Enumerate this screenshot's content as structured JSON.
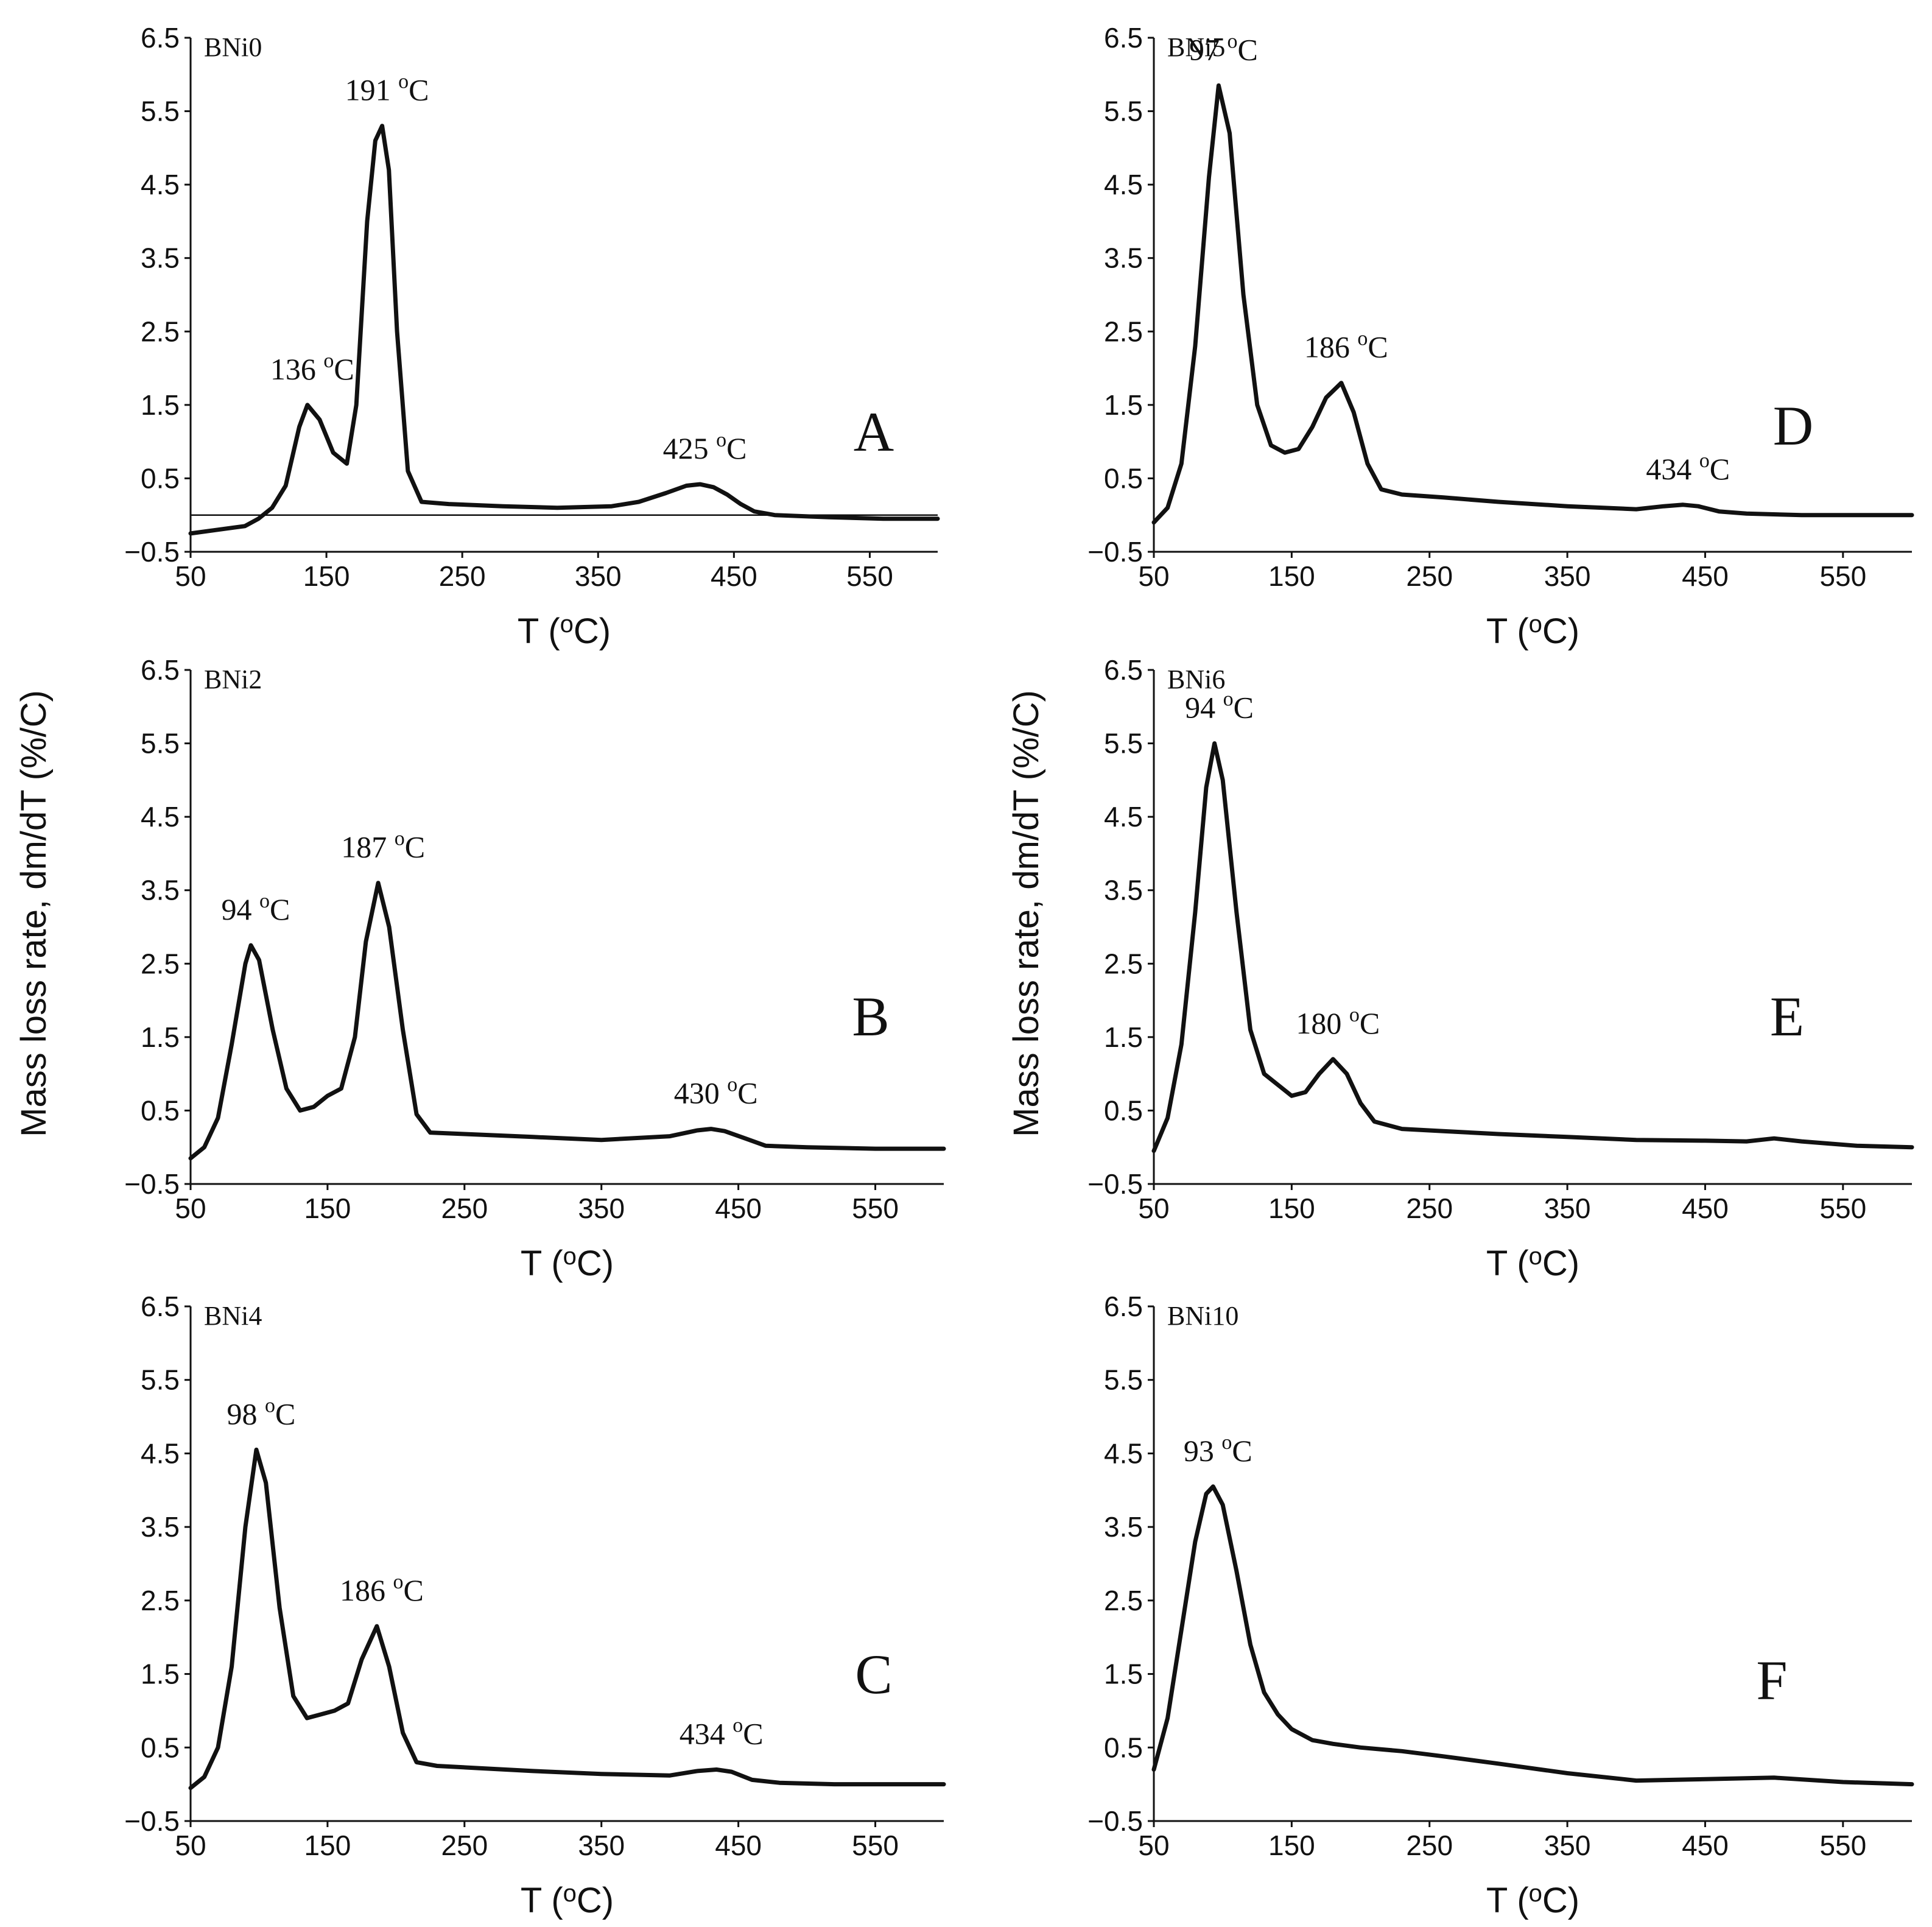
{
  "y_axis_label": "Mass loss rate, dm/dT (%/C)",
  "chart_data": [
    {
      "panel": "A",
      "type": "line",
      "sample": "BNi0",
      "xlabel": "T (oC)",
      "ylabel": "Mass loss rate, dm/dT (%/C)",
      "xlim": [
        50,
        600
      ],
      "ylim": [
        -0.5,
        6.5
      ],
      "xticks": [
        "50",
        "150",
        "250",
        "350",
        "450",
        "550"
      ],
      "yticks": [
        "6.5",
        "5.5",
        "4.5",
        "3.5",
        "2.5",
        "1.5",
        "0.5",
        "−0.5"
      ],
      "zero_line": true,
      "annotations": [
        {
          "label": "136",
          "unit": "C",
          "x": 136,
          "y": 1.5
        },
        {
          "label": "191",
          "unit": "C",
          "x": 191,
          "y": 5.3
        },
        {
          "label": "425",
          "unit": "C",
          "x": 425,
          "y": 0.42
        }
      ],
      "x": [
        50,
        70,
        90,
        100,
        110,
        120,
        130,
        136,
        145,
        155,
        165,
        172,
        180,
        186,
        191,
        196,
        202,
        210,
        220,
        240,
        280,
        320,
        360,
        380,
        400,
        415,
        425,
        435,
        445,
        455,
        465,
        480,
        520,
        560,
        600
      ],
      "y": [
        -0.25,
        -0.2,
        -0.15,
        -0.05,
        0.1,
        0.4,
        1.2,
        1.5,
        1.3,
        0.85,
        0.7,
        1.5,
        4.0,
        5.1,
        5.3,
        4.7,
        2.5,
        0.6,
        0.18,
        0.15,
        0.12,
        0.1,
        0.12,
        0.18,
        0.3,
        0.4,
        0.42,
        0.38,
        0.28,
        0.15,
        0.05,
        0.0,
        -0.03,
        -0.05,
        -0.05
      ]
    },
    {
      "panel": "B",
      "type": "line",
      "sample": "BNi2",
      "xlabel": "T (oC)",
      "ylabel": "Mass loss rate, dm/dT (%/C)",
      "xlim": [
        50,
        600
      ],
      "ylim": [
        -0.5,
        6.5
      ],
      "xticks": [
        "50",
        "150",
        "250",
        "350",
        "450",
        "550"
      ],
      "yticks": [
        "6.5",
        "5.5",
        "4.5",
        "3.5",
        "2.5",
        "1.5",
        "0.5",
        "−0.5"
      ],
      "zero_line": false,
      "annotations": [
        {
          "label": "94",
          "unit": "C",
          "x": 94,
          "y": 2.75
        },
        {
          "label": "187",
          "unit": "C",
          "x": 187,
          "y": 3.6
        },
        {
          "label": "430",
          "unit": "C",
          "x": 430,
          "y": 0.25
        }
      ],
      "x": [
        50,
        60,
        70,
        80,
        90,
        94,
        100,
        110,
        120,
        130,
        140,
        150,
        160,
        170,
        178,
        187,
        195,
        205,
        215,
        225,
        250,
        300,
        350,
        400,
        420,
        430,
        440,
        455,
        470,
        500,
        550,
        600
      ],
      "y": [
        -0.15,
        0.0,
        0.4,
        1.4,
        2.5,
        2.75,
        2.55,
        1.6,
        0.8,
        0.5,
        0.55,
        0.7,
        0.8,
        1.5,
        2.8,
        3.6,
        3.0,
        1.6,
        0.45,
        0.2,
        0.18,
        0.14,
        0.1,
        0.15,
        0.23,
        0.25,
        0.22,
        0.12,
        0.02,
        0.0,
        -0.02,
        -0.02
      ]
    },
    {
      "panel": "C",
      "type": "line",
      "sample": "BNi4",
      "xlabel": "T (oC)",
      "ylabel": "Mass loss rate, dm/dT (%/C)",
      "xlim": [
        50,
        600
      ],
      "ylim": [
        -0.5,
        6.5
      ],
      "xticks": [
        "50",
        "150",
        "250",
        "350",
        "450",
        "550"
      ],
      "yticks": [
        "6.5",
        "5.5",
        "4.5",
        "3.5",
        "2.5",
        "1.5",
        "0.5",
        "−0.5"
      ],
      "zero_line": false,
      "annotations": [
        {
          "label": "98",
          "unit": "C",
          "x": 98,
          "y": 4.55
        },
        {
          "label": "186",
          "unit": "C",
          "x": 186,
          "y": 2.15
        },
        {
          "label": "434",
          "unit": "C",
          "x": 434,
          "y": 0.2
        }
      ],
      "x": [
        50,
        60,
        70,
        80,
        90,
        98,
        105,
        115,
        125,
        135,
        145,
        155,
        165,
        175,
        186,
        195,
        205,
        215,
        230,
        260,
        300,
        350,
        400,
        420,
        434,
        445,
        460,
        480,
        520,
        560,
        600
      ],
      "y": [
        -0.05,
        0.1,
        0.5,
        1.6,
        3.5,
        4.55,
        4.1,
        2.4,
        1.2,
        0.9,
        0.95,
        1.0,
        1.1,
        1.7,
        2.15,
        1.6,
        0.7,
        0.3,
        0.25,
        0.22,
        0.18,
        0.14,
        0.12,
        0.18,
        0.2,
        0.17,
        0.06,
        0.02,
        0.0,
        0.0,
        0.0
      ]
    },
    {
      "panel": "D",
      "type": "line",
      "sample": "BNi5",
      "xlabel": "T (oC)",
      "ylabel": "Mass loss rate, dm/dT (%/C)",
      "xlim": [
        50,
        600
      ],
      "ylim": [
        -0.5,
        6.5
      ],
      "xticks": [
        "50",
        "150",
        "250",
        "350",
        "450",
        "550"
      ],
      "yticks": [
        "6.5",
        "5.5",
        "4.5",
        "3.5",
        "2.5",
        "1.5",
        "0.5",
        "−0.5"
      ],
      "zero_line": false,
      "annotations": [
        {
          "label": "97",
          "unit": "C",
          "x": 97,
          "y": 5.85
        },
        {
          "label": "186",
          "unit": "C",
          "x": 186,
          "y": 1.8
        },
        {
          "label": "434",
          "unit": "C",
          "x": 434,
          "y": 0.14
        }
      ],
      "x": [
        50,
        60,
        70,
        80,
        90,
        97,
        105,
        115,
        125,
        135,
        145,
        155,
        165,
        175,
        186,
        195,
        205,
        215,
        230,
        260,
        300,
        350,
        400,
        420,
        434,
        445,
        460,
        480,
        520,
        560,
        600
      ],
      "y": [
        -0.1,
        0.1,
        0.7,
        2.3,
        4.6,
        5.85,
        5.2,
        3.0,
        1.5,
        0.95,
        0.85,
        0.9,
        1.2,
        1.6,
        1.8,
        1.4,
        0.7,
        0.35,
        0.28,
        0.24,
        0.18,
        0.12,
        0.08,
        0.12,
        0.14,
        0.12,
        0.05,
        0.02,
        0.0,
        0.0,
        0.0
      ]
    },
    {
      "panel": "E",
      "type": "line",
      "sample": "BNi6",
      "xlabel": "T (oC)",
      "ylabel": "Mass loss rate, dm/dT (%/C)",
      "xlim": [
        50,
        600
      ],
      "ylim": [
        -0.5,
        6.5
      ],
      "xticks": [
        "50",
        "150",
        "250",
        "350",
        "450",
        "550"
      ],
      "yticks": [
        "6.5",
        "5.5",
        "4.5",
        "3.5",
        "2.5",
        "1.5",
        "0.5",
        "−0.5"
      ],
      "zero_line": false,
      "annotations": [
        {
          "label": "94",
          "unit": "C",
          "x": 94,
          "y": 5.5
        },
        {
          "label": "180",
          "unit": "C",
          "x": 180,
          "y": 1.2
        }
      ],
      "x": [
        50,
        60,
        70,
        80,
        88,
        94,
        100,
        110,
        120,
        130,
        140,
        150,
        160,
        170,
        180,
        190,
        200,
        210,
        230,
        260,
        300,
        350,
        400,
        450,
        480,
        500,
        520,
        560,
        600
      ],
      "y": [
        -0.05,
        0.4,
        1.4,
        3.2,
        4.9,
        5.5,
        5.0,
        3.2,
        1.6,
        1.0,
        0.85,
        0.7,
        0.75,
        1.0,
        1.2,
        1.0,
        0.6,
        0.35,
        0.25,
        0.22,
        0.18,
        0.14,
        0.1,
        0.09,
        0.08,
        0.12,
        0.08,
        0.02,
        0.0
      ]
    },
    {
      "panel": "F",
      "type": "line",
      "sample": "BNi10",
      "xlabel": "T (oC)",
      "ylabel": "Mass loss rate, dm/dT (%/C)",
      "xlim": [
        50,
        600
      ],
      "ylim": [
        -0.5,
        6.5
      ],
      "xticks": [
        "50",
        "150",
        "250",
        "350",
        "450",
        "550"
      ],
      "yticks": [
        "6.5",
        "5.5",
        "4.5",
        "3.5",
        "2.5",
        "1.5",
        "0.5",
        "−0.5"
      ],
      "zero_line": false,
      "annotations": [
        {
          "label": "93",
          "unit": "C",
          "x": 93,
          "y": 4.05
        }
      ],
      "x": [
        50,
        60,
        70,
        80,
        88,
        93,
        100,
        110,
        120,
        130,
        140,
        150,
        165,
        180,
        200,
        230,
        260,
        300,
        350,
        400,
        450,
        500,
        550,
        600
      ],
      "y": [
        0.2,
        0.9,
        2.1,
        3.3,
        3.95,
        4.05,
        3.8,
        2.9,
        1.9,
        1.25,
        0.95,
        0.75,
        0.6,
        0.55,
        0.5,
        0.45,
        0.38,
        0.28,
        0.15,
        0.05,
        0.07,
        0.09,
        0.03,
        0.0
      ]
    }
  ]
}
